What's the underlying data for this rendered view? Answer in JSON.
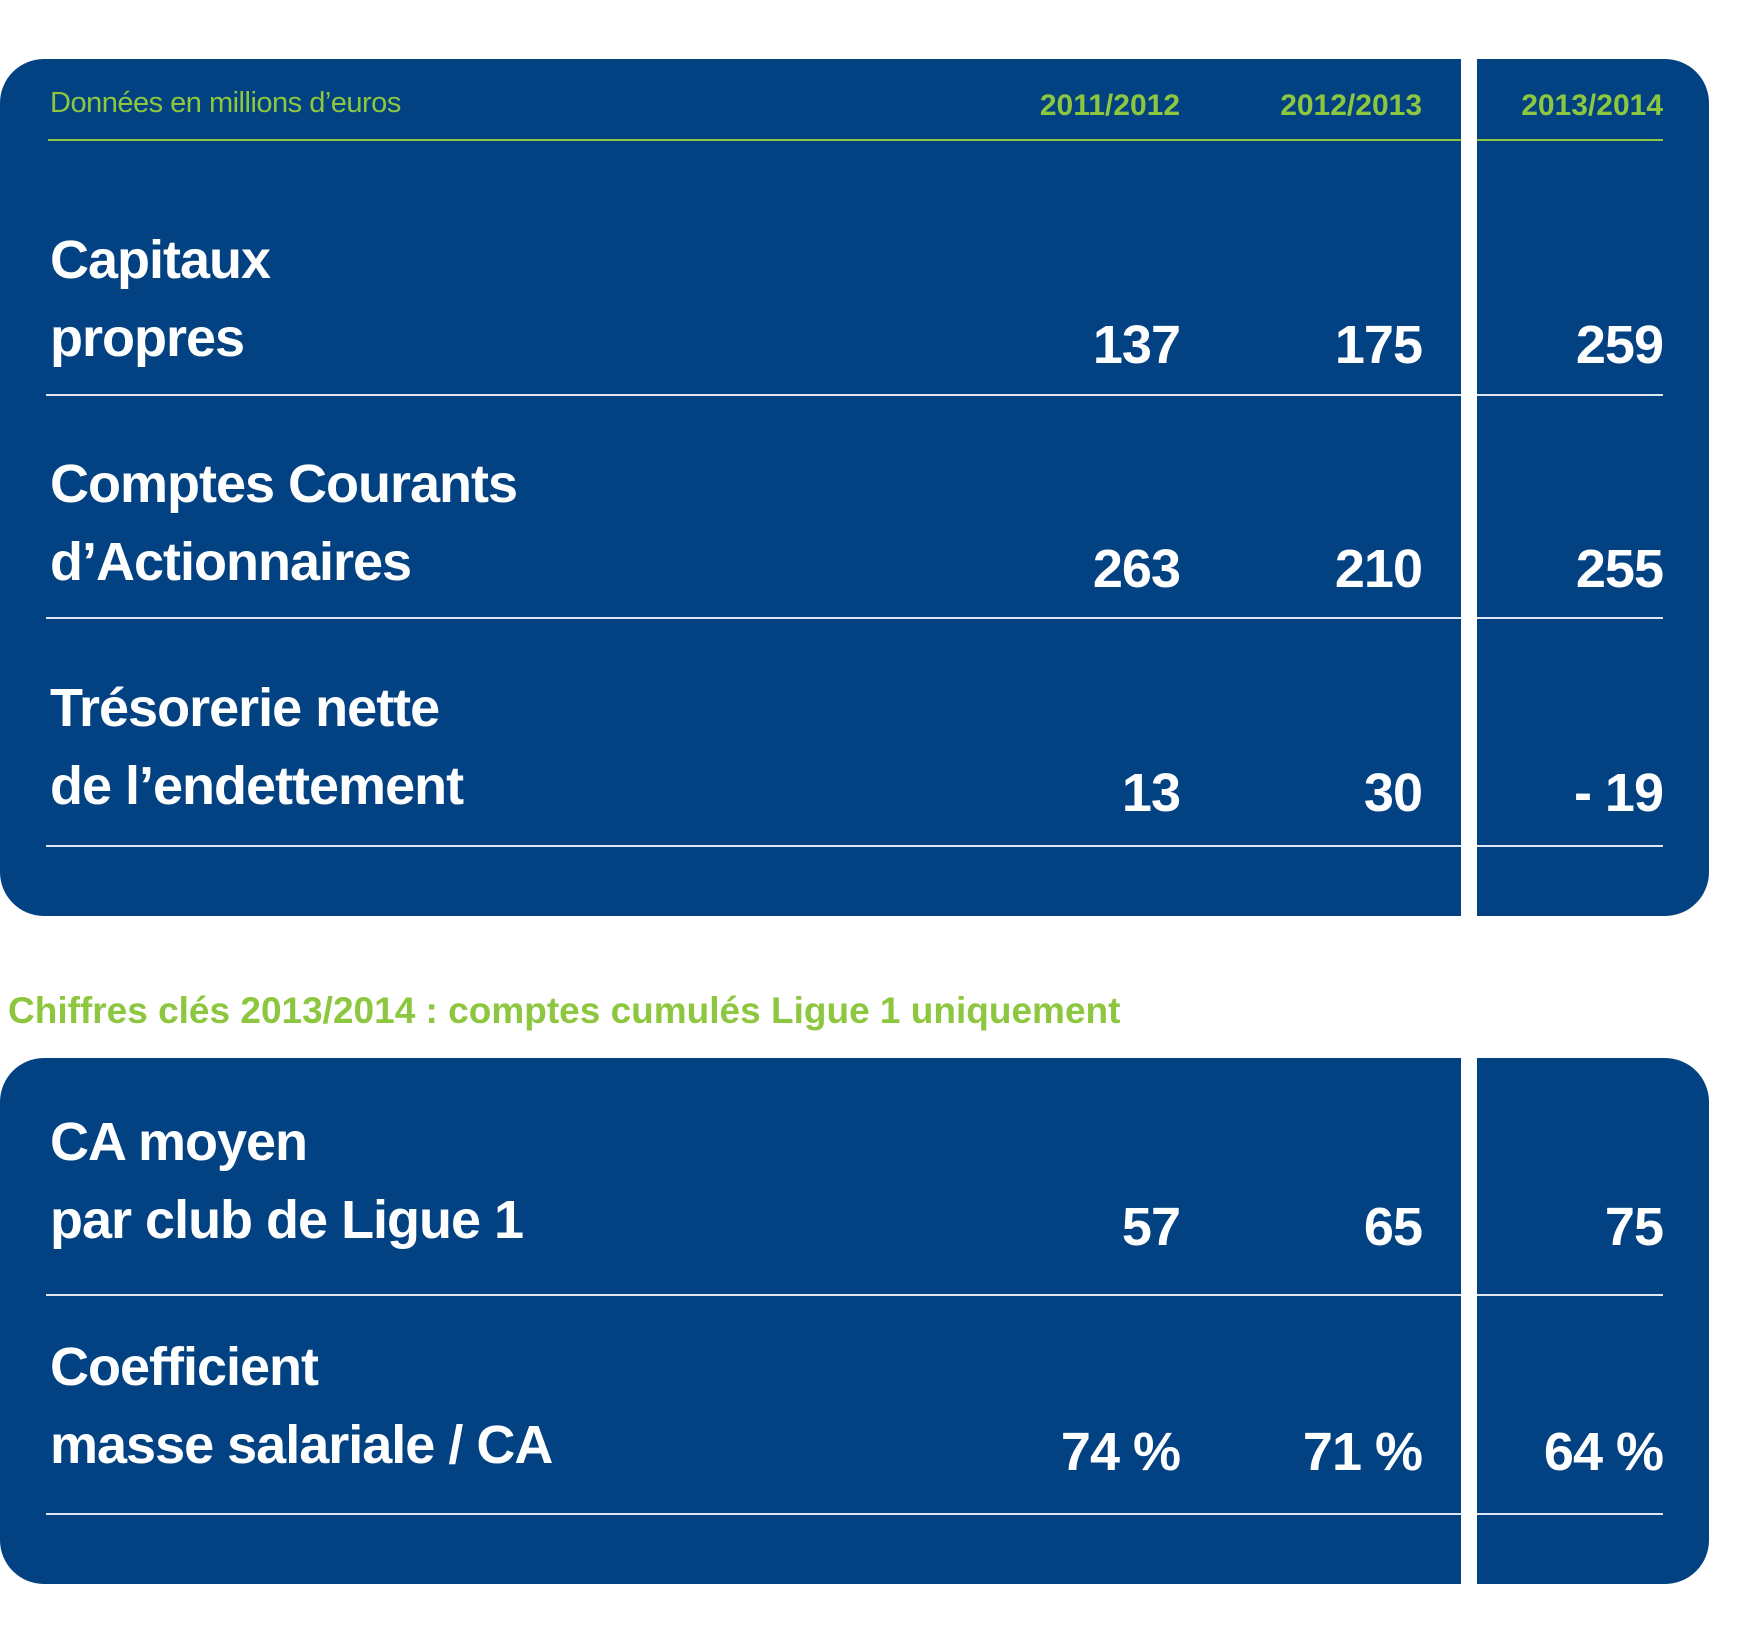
{
  "table1": {
    "unit_label": "Données en millions d’euros",
    "years": [
      "2011/2012",
      "2012/2013",
      "2013/2014"
    ],
    "rows": [
      {
        "label1": "Capitaux",
        "label2": "propres",
        "values": [
          "137",
          "175",
          "259"
        ]
      },
      {
        "label1": "Comptes Courants",
        "label2": "d’Actionnaires",
        "values": [
          "263",
          "210",
          "255"
        ]
      },
      {
        "label1": "Trésorerie nette",
        "label2": "de l’endettement",
        "values": [
          "13",
          "30",
          "- 19"
        ]
      }
    ]
  },
  "subtitle": "Chiffres clés 2013/2014  : comptes cumulés Ligue 1 uniquement",
  "table2": {
    "rows": [
      {
        "label1": "CA moyen",
        "label2": "par club de Ligue 1",
        "values": [
          "57",
          "65",
          "75"
        ]
      },
      {
        "label1": "Coefficient",
        "label2": "masse salariale / CA",
        "values": [
          "74 %",
          "71 %",
          "64 %"
        ]
      }
    ]
  },
  "colors": {
    "panel": "#024282",
    "accent": "#8dc63f"
  }
}
